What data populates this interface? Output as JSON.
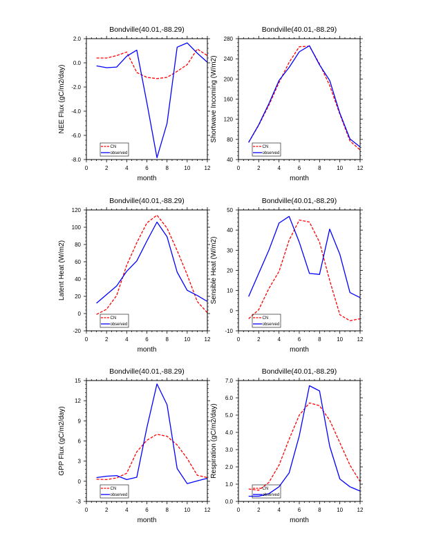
{
  "chart_data": [
    {
      "type": "line",
      "title": "Bondville(40.01,-88.29)",
      "xlabel": "month",
      "ylabel": "NEE Flux (gC/m2/day)",
      "xlim": [
        0,
        12
      ],
      "ylim": [
        -8.0,
        2.0
      ],
      "xticks": [
        "0",
        "2",
        "4",
        "6",
        "8",
        "10",
        "12"
      ],
      "yticks": [
        "-8.0",
        "-6.0",
        "-4.0",
        "-2.0",
        "0.0",
        "2.0"
      ],
      "x": [
        1,
        2,
        3,
        4,
        5,
        6,
        7,
        8,
        9,
        10,
        11,
        12
      ],
      "series": [
        {
          "name": "CN",
          "color": "#ff0000",
          "dash": "dashed",
          "values": [
            0.4,
            0.4,
            0.6,
            0.9,
            -0.8,
            -1.2,
            -1.3,
            -1.2,
            -0.7,
            -0.15,
            1.15,
            0.6
          ]
        },
        {
          "name": "observed",
          "color": "#0000ff",
          "dash": "solid",
          "values": [
            -0.25,
            -0.4,
            -0.35,
            0.55,
            1.05,
            -3.3,
            -7.85,
            -5.0,
            1.3,
            1.65,
            0.8,
            0.05
          ]
        }
      ],
      "legend": {
        "position": "bottom-left",
        "entries": [
          "CN",
          "observed"
        ]
      },
      "grid": false
    },
    {
      "type": "line",
      "title": "Bondville(40.01,-88.29)",
      "xlabel": "month",
      "ylabel": "Shortwave Incoming (W/m2)",
      "xlim": [
        0,
        12
      ],
      "ylim": [
        40,
        280
      ],
      "xticks": [
        "0",
        "2",
        "4",
        "6",
        "8",
        "10",
        "12"
      ],
      "yticks": [
        "40",
        "80",
        "120",
        "160",
        "200",
        "240",
        "280"
      ],
      "x": [
        1,
        2,
        3,
        4,
        5,
        6,
        7,
        8,
        9,
        10,
        11,
        12
      ],
      "series": [
        {
          "name": "CN",
          "color": "#ff0000",
          "dash": "dashed",
          "values": [
            74,
            108,
            148,
            193,
            233,
            264,
            265,
            230,
            187,
            130,
            77,
            59
          ]
        },
        {
          "name": "observed",
          "color": "#0000ff",
          "dash": "solid",
          "values": [
            74,
            109,
            151,
            197,
            223,
            254,
            266,
            228,
            197,
            132,
            81,
            65
          ]
        }
      ],
      "legend": {
        "position": "bottom-left",
        "entries": [
          "CN",
          "observed"
        ]
      },
      "grid": false
    },
    {
      "type": "line",
      "title": "Bondville(40.01,-88.29)",
      "xlabel": "month",
      "ylabel": "Latent Heat (W/m2)",
      "xlim": [
        0,
        12
      ],
      "ylim": [
        -20,
        120
      ],
      "xticks": [
        "0",
        "2",
        "4",
        "6",
        "8",
        "10",
        "12"
      ],
      "yticks": [
        "-20",
        "0",
        "20",
        "40",
        "60",
        "80",
        "100",
        "120"
      ],
      "x": [
        1,
        2,
        3,
        4,
        5,
        6,
        7,
        8,
        9,
        10,
        11,
        12
      ],
      "series": [
        {
          "name": "CN",
          "color": "#ff0000",
          "dash": "dashed",
          "values": [
            -1,
            5,
            21,
            56,
            82,
            105,
            114,
            99,
            73,
            45,
            14,
            1
          ]
        },
        {
          "name": "observed",
          "color": "#0000ff",
          "dash": "solid",
          "values": [
            12,
            22,
            32,
            49,
            61,
            84,
            106,
            89,
            48,
            27,
            21,
            14
          ]
        }
      ],
      "legend": {
        "position": "bottom-left",
        "entries": [
          "CN",
          "observed"
        ]
      },
      "grid": false
    },
    {
      "type": "line",
      "title": "Bondville(40.01,-88.29)",
      "xlabel": "month",
      "ylabel": "Sensible Heat (W/m2)",
      "xlim": [
        0,
        12
      ],
      "ylim": [
        -10,
        50
      ],
      "xticks": [
        "0",
        "2",
        "4",
        "6",
        "8",
        "10",
        "12"
      ],
      "yticks": [
        "-10",
        "0",
        "10",
        "20",
        "30",
        "40",
        "50"
      ],
      "x": [
        1,
        2,
        3,
        4,
        5,
        6,
        7,
        8,
        9,
        10,
        11,
        12
      ],
      "series": [
        {
          "name": "CN",
          "color": "#ff0000",
          "dash": "dashed",
          "values": [
            -4,
            0.5,
            11,
            19.5,
            35,
            45,
            44,
            34,
            15,
            -2,
            -5,
            -4
          ]
        },
        {
          "name": "observed",
          "color": "#0000ff",
          "dash": "solid",
          "values": [
            7,
            18.5,
            30,
            43.5,
            46.8,
            34,
            18.5,
            18,
            40.5,
            28,
            9,
            6.5
          ]
        }
      ],
      "legend": {
        "position": "bottom-left",
        "entries": [
          "CN",
          "observed"
        ]
      },
      "grid": false
    },
    {
      "type": "line",
      "title": "Bondville(40.01,-88.29)",
      "xlabel": "month",
      "ylabel": "GPP Flux (gC/m2/day)",
      "xlim": [
        0,
        12
      ],
      "ylim": [
        -3,
        15
      ],
      "xticks": [
        "0",
        "2",
        "4",
        "6",
        "8",
        "10",
        "12"
      ],
      "yticks": [
        "-3",
        "0",
        "3",
        "6",
        "9",
        "12",
        "15"
      ],
      "x": [
        1,
        2,
        3,
        4,
        5,
        6,
        7,
        8,
        9,
        10,
        11,
        12
      ],
      "series": [
        {
          "name": "CN",
          "color": "#ff0000",
          "dash": "dashed",
          "values": [
            0.3,
            0.25,
            0.5,
            1.2,
            4.4,
            6.1,
            7.0,
            6.7,
            5.4,
            3.4,
            0.9,
            0.55
          ]
        },
        {
          "name": "observed",
          "color": "#0000ff",
          "dash": "solid",
          "values": [
            0.55,
            0.75,
            0.85,
            0.25,
            0.6,
            8.0,
            14.5,
            11.4,
            1.9,
            -0.35,
            0.05,
            0.45
          ]
        }
      ],
      "legend": {
        "position": "bottom-left",
        "entries": [
          "CN",
          "observed"
        ]
      },
      "grid": false
    },
    {
      "type": "line",
      "title": "Bondville(40.01,-88.29)",
      "xlabel": "month",
      "ylabel": "Respiration (gC/m2/day)",
      "xlim": [
        0,
        12
      ],
      "ylim": [
        0.0,
        7.0
      ],
      "xticks": [
        "0",
        "2",
        "4",
        "6",
        "8",
        "10",
        "12"
      ],
      "yticks": [
        "0.0",
        "1.0",
        "2.0",
        "3.0",
        "4.0",
        "5.0",
        "6.0",
        "7.0"
      ],
      "x": [
        1,
        2,
        3,
        4,
        5,
        6,
        7,
        8,
        9,
        10,
        11,
        12
      ],
      "series": [
        {
          "name": "CN",
          "color": "#ff0000",
          "dash": "dashed",
          "values": [
            0.72,
            0.65,
            1.1,
            2.1,
            3.6,
            5.0,
            5.7,
            5.55,
            4.7,
            3.4,
            2.1,
            1.15
          ]
        },
        {
          "name": "observed",
          "color": "#0000ff",
          "dash": "solid",
          "values": [
            0.3,
            0.3,
            0.45,
            0.85,
            1.65,
            3.8,
            6.7,
            6.4,
            3.2,
            1.3,
            0.85,
            0.6
          ]
        }
      ],
      "legend": {
        "position": "bottom-left",
        "entries": [
          "CN",
          "observed"
        ]
      },
      "grid": false
    }
  ]
}
